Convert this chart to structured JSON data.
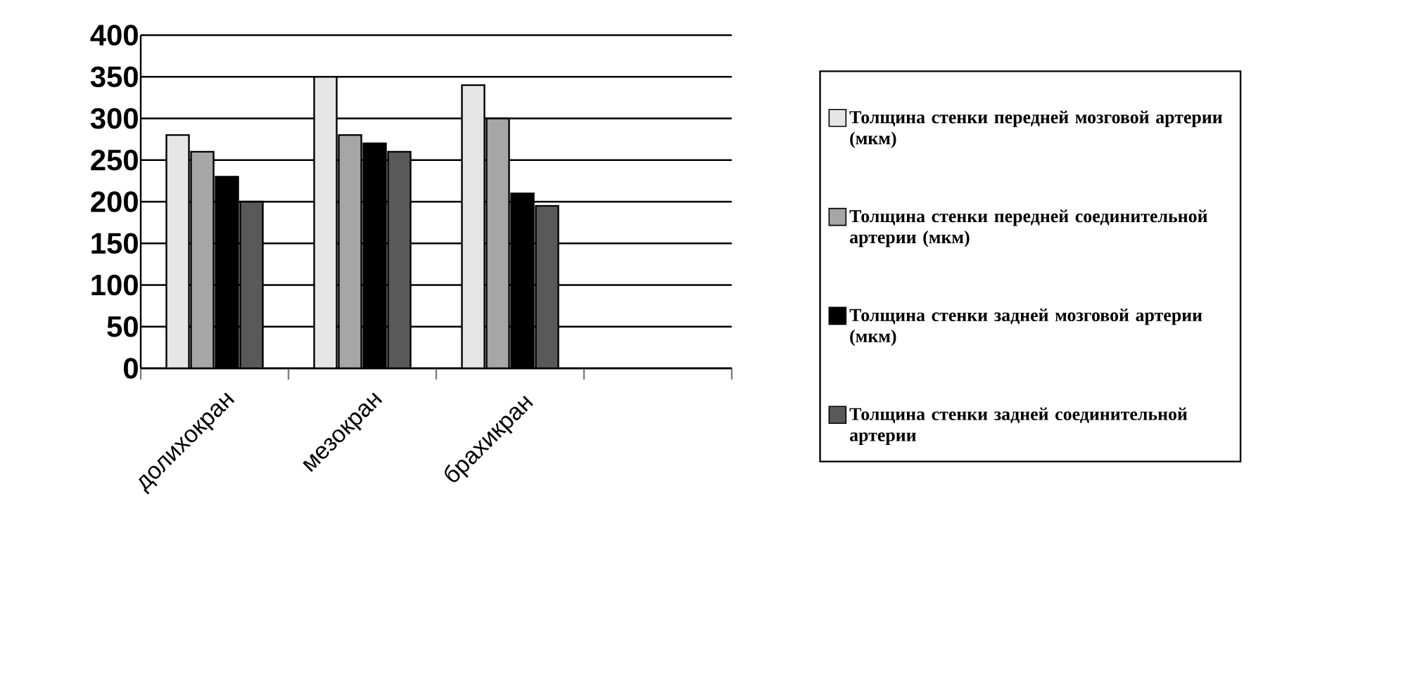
{
  "chart_data": {
    "type": "bar",
    "categories": [
      "долихокран",
      "мезокран",
      "брахикран",
      null
    ],
    "series": [
      {
        "name": "Толщина стенки передней мозговой артерии (мкм)",
        "color": "#e6e6e6",
        "values": [
          280,
          350,
          340,
          null
        ]
      },
      {
        "name": "Толщина стенки передней соединительной артерии (мкм)",
        "color": "#a6a6a6",
        "values": [
          260,
          280,
          300,
          null
        ]
      },
      {
        "name": "Толщина стенки задней мозговой артерии (мкм)",
        "color": "#000000",
        "values": [
          230,
          270,
          210,
          null
        ]
      },
      {
        "name": "Толщина стенки задней соединительной артерии",
        "color": "#595959",
        "values": [
          200,
          260,
          195,
          null
        ]
      }
    ],
    "ylim": [
      0,
      400
    ],
    "yticks": [
      0,
      50,
      100,
      150,
      200,
      250,
      300,
      350,
      400
    ],
    "grid": "y",
    "legend": "right"
  }
}
